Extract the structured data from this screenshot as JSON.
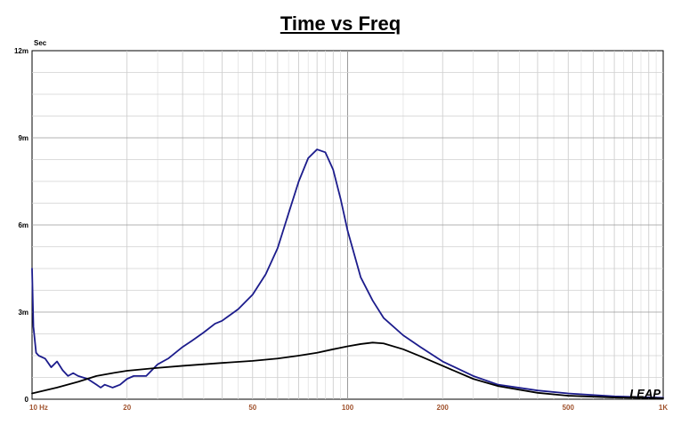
{
  "chart_data": {
    "type": "line",
    "title": "Time vs Freq",
    "ylabel": "Sec",
    "xlabel": "",
    "x_scale": "log",
    "xlim": [
      10,
      1000
    ],
    "ylim": [
      0,
      0.012
    ],
    "grid": true,
    "x_ticks": [
      {
        "value": 10,
        "label": "10  Hz"
      },
      {
        "value": 20,
        "label": "20"
      },
      {
        "value": 50,
        "label": "50"
      },
      {
        "value": 100,
        "label": "100"
      },
      {
        "value": 200,
        "label": "200"
      },
      {
        "value": 500,
        "label": "500"
      },
      {
        "value": 1000,
        "label": "1K"
      }
    ],
    "y_ticks": [
      {
        "value": 0,
        "label": "0"
      },
      {
        "value": 0.003,
        "label": "3m"
      },
      {
        "value": 0.006,
        "label": "6m"
      },
      {
        "value": 0.009,
        "label": "9m"
      },
      {
        "value": 0.012,
        "label": "12m"
      }
    ],
    "series": [
      {
        "color": "#1c1c8c",
        "x": [
          10,
          10.1,
          10.3,
          10.5,
          11,
          11.5,
          12,
          12.5,
          13,
          13.5,
          14,
          15,
          16,
          16.5,
          17,
          18,
          19,
          20,
          21,
          22,
          23,
          25,
          27,
          30,
          32,
          35,
          38,
          40,
          45,
          50,
          55,
          60,
          65,
          70,
          75,
          80,
          85,
          90,
          95,
          100,
          110,
          120,
          130,
          150,
          170,
          200,
          250,
          300,
          400,
          500,
          700,
          1000
        ],
        "y": [
          0.0045,
          0.0025,
          0.0016,
          0.0015,
          0.0014,
          0.0011,
          0.0013,
          0.001,
          0.0008,
          0.0009,
          0.0008,
          0.0007,
          0.0005,
          0.0004,
          0.0005,
          0.0004,
          0.0005,
          0.0007,
          0.0008,
          0.0008,
          0.0008,
          0.0012,
          0.0014,
          0.0018,
          0.002,
          0.0023,
          0.0026,
          0.0027,
          0.0031,
          0.0036,
          0.0043,
          0.0052,
          0.0064,
          0.0075,
          0.0083,
          0.0086,
          0.0085,
          0.0079,
          0.0069,
          0.0058,
          0.0042,
          0.0034,
          0.0028,
          0.0022,
          0.0018,
          0.0013,
          0.0008,
          0.0005,
          0.0003,
          0.0002,
          0.0001,
          5e-05
        ]
      },
      {
        "color": "#000000",
        "x": [
          10,
          12,
          14,
          16,
          18,
          20,
          25,
          30,
          40,
          50,
          60,
          70,
          80,
          90,
          100,
          110,
          120,
          130,
          150,
          170,
          200,
          250,
          300,
          400,
          500,
          700,
          1000
        ],
        "y": [
          0.0002,
          0.0004,
          0.0006,
          0.0008,
          0.0009,
          0.00098,
          0.00108,
          0.00115,
          0.00125,
          0.00132,
          0.0014,
          0.0015,
          0.0016,
          0.00172,
          0.00182,
          0.0019,
          0.00195,
          0.00192,
          0.00172,
          0.00148,
          0.00115,
          0.0007,
          0.00045,
          0.00022,
          0.00012,
          6e-05,
          3e-05
        ]
      }
    ],
    "watermark": "LEAP"
  }
}
